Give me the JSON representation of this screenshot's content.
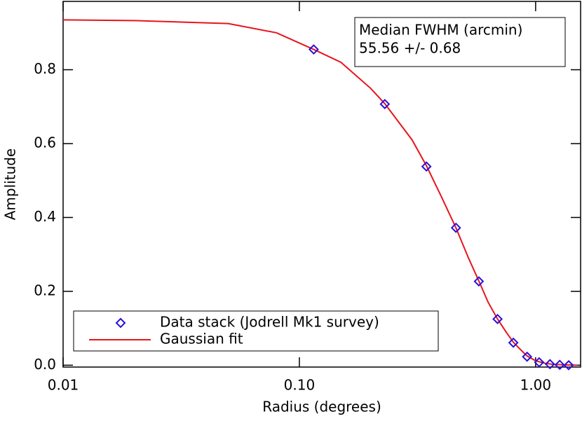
{
  "chart_data": {
    "type": "scatter",
    "x_label": "Radius (degrees)",
    "y_label": "Amplitude",
    "annotation": [
      "Median FWHM (arcmin)",
      "55.56 +/- 0.68"
    ],
    "xlog": true,
    "xlim": [
      0.01,
      1.55
    ],
    "ylim": [
      -0.005,
      0.985
    ],
    "xticks": [
      0.01,
      {
        "value": 0.1,
        "label": "0.10"
      },
      {
        "value": 1,
        "label": "1.00"
      }
    ],
    "yticks": [
      {
        "value": 0,
        "label": "0.0"
      },
      0.2,
      0.4,
      0.6,
      0.8
    ],
    "legend": "lower left",
    "series": [
      {
        "name": "Data stack (Jodrell Mk1 survey)",
        "kind": "scatter",
        "color": "#2a10d8",
        "x": [
          0.115,
          0.23,
          0.345,
          0.46,
          0.575,
          0.69,
          0.805,
          0.92,
          1.035,
          1.15,
          1.265,
          1.38
        ],
        "values": [
          0.855,
          0.707,
          0.538,
          0.372,
          0.227,
          0.125,
          0.061,
          0.023,
          0.008,
          0.003,
          0.001,
          0
        ]
      },
      {
        "name": "Gaussian fit",
        "kind": "line",
        "color": "#e8141c",
        "x": [
          0.01,
          0.02,
          0.05,
          0.08,
          0.115,
          0.15,
          0.2,
          0.23,
          0.3,
          0.345,
          0.4,
          0.46,
          0.52,
          0.575,
          0.63,
          0.69,
          0.75,
          0.805,
          0.87,
          0.92,
          1.0,
          1.1,
          1.2,
          1.35,
          1.5
        ],
        "values": [
          0.935,
          0.933,
          0.925,
          0.9,
          0.855,
          0.82,
          0.75,
          0.708,
          0.61,
          0.54,
          0.455,
          0.372,
          0.29,
          0.228,
          0.17,
          0.125,
          0.09,
          0.062,
          0.04,
          0.025,
          0.012,
          0.005,
          0.002,
          0.001,
          0
        ]
      }
    ]
  }
}
